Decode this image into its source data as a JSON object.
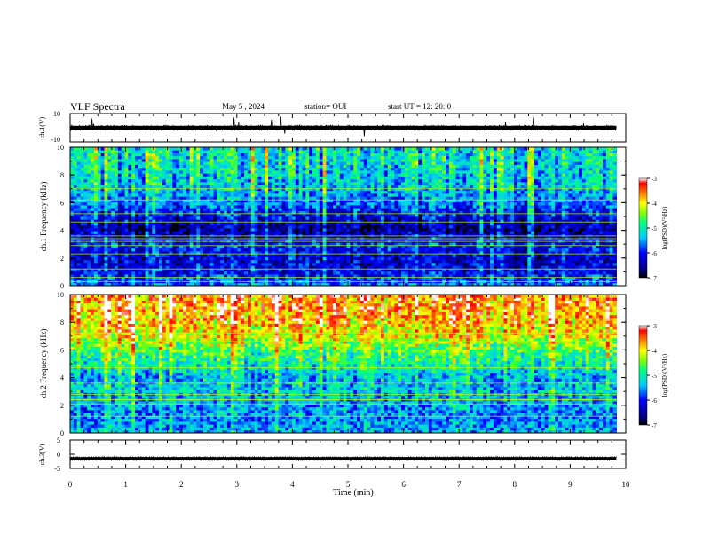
{
  "header": {
    "title": "VLF Spectra",
    "date": "May 5 , 2024",
    "station": "station= OUI",
    "start": "start UT = 12: 20: 0"
  },
  "colors": {
    "colormap": [
      "#000060",
      "#0000ff",
      "#00c0ff",
      "#00ff80",
      "#80ff00",
      "#ffff00",
      "#ff8000",
      "#ff0000",
      "#ffffff"
    ]
  },
  "chart_data": [
    {
      "type": "line",
      "panel": "ch1-waveform",
      "ylabel": "ch.1(V)",
      "ylim": [
        -10,
        10
      ],
      "yticks": [
        "10",
        "-10"
      ],
      "baseline": 0,
      "x_range": [
        0,
        9.83
      ]
    },
    {
      "type": "heatmap",
      "panel": "ch1-spectrogram",
      "ylabel": "ch.1 Frequency (kHz)",
      "ylim": [
        0,
        10
      ],
      "yticks": [
        "0",
        "2",
        "4",
        "6",
        "8",
        "10"
      ],
      "colorbar": {
        "label": "log(PSD)(V²/Hz)",
        "range": [
          -7,
          -3
        ],
        "ticks": [
          "-3",
          "-4",
          "-5",
          "-6",
          "-7"
        ]
      },
      "profile_kHz": [
        0,
        1,
        2,
        3,
        4,
        5,
        6,
        7,
        8,
        9,
        10
      ],
      "profile_logpsd": [
        -5.6,
        -6.2,
        -6.3,
        -6.0,
        -6.6,
        -6.2,
        -5.7,
        -5.4,
        -5.3,
        -5.2,
        -5.2
      ],
      "lines_kHz": [
        0.3,
        0.6,
        1.2,
        2.3,
        2.9,
        3.2,
        3.4,
        3.6,
        4.6,
        5.2,
        6.2,
        7.0
      ]
    },
    {
      "type": "heatmap",
      "panel": "ch2-spectrogram",
      "ylabel": "ch.2 Frequency (kHz)",
      "ylim": [
        0,
        10
      ],
      "yticks": [
        "0",
        "2",
        "4",
        "6",
        "8",
        "10"
      ],
      "colorbar": {
        "label": "log(PSD)(V²/Hz)",
        "range": [
          -7,
          -3
        ],
        "ticks": [
          "-3",
          "-4",
          "-5",
          "-6",
          "-7"
        ]
      },
      "profile_kHz": [
        0,
        1,
        2,
        3,
        4,
        5,
        6,
        7,
        8,
        9,
        10
      ],
      "profile_logpsd": [
        -5.4,
        -5.6,
        -5.5,
        -5.3,
        -5.4,
        -5.0,
        -4.6,
        -4.1,
        -3.8,
        -3.6,
        -3.6
      ],
      "lines_kHz": [
        1.2,
        2.1,
        2.4,
        2.8,
        3.6,
        4.7,
        6.6,
        7.2
      ]
    },
    {
      "type": "line",
      "panel": "ch3-waveform",
      "ylabel": "ch.3(V)",
      "ylim": [
        -5,
        5
      ],
      "yticks": [
        "5",
        "0",
        "-5"
      ],
      "baseline": -1.5,
      "x_range": [
        0,
        9.83
      ]
    }
  ],
  "xaxis": {
    "label": "Time (min)",
    "range": [
      0,
      10
    ],
    "ticks": [
      "0",
      "1",
      "2",
      "3",
      "4",
      "5",
      "6",
      "7",
      "8",
      "9",
      "10"
    ]
  }
}
